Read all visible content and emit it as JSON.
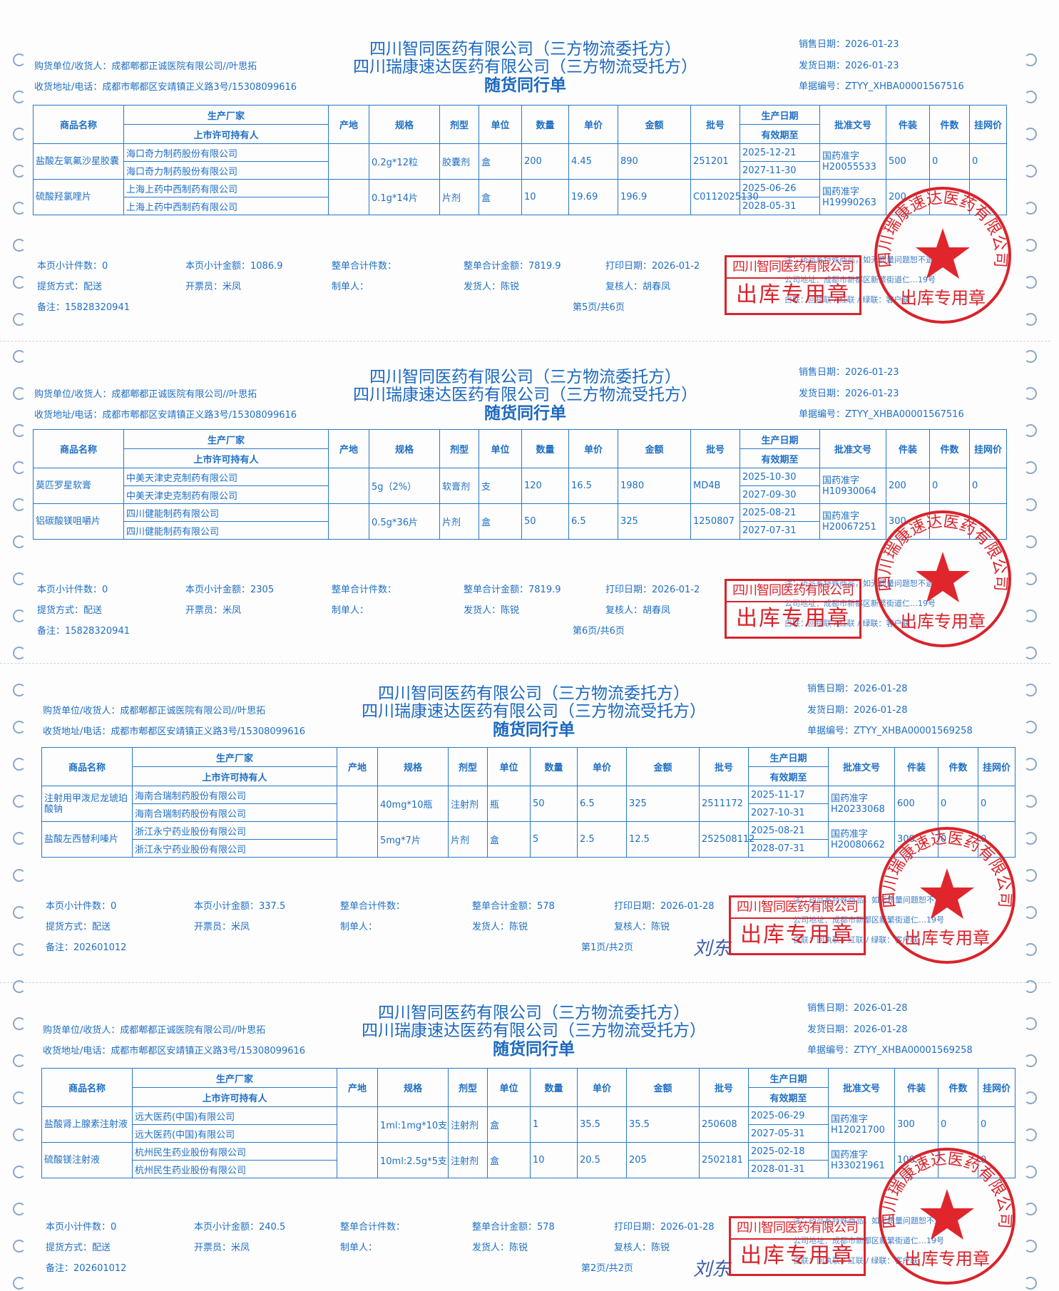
{
  "labels": {
    "buyer": "购货单位/收货人：",
    "address": "收货地址/电话：",
    "sale_date": "销售日期：",
    "ship_date": "发货日期：",
    "doc_no": "单据编号：",
    "page_count": "本页小计件数：",
    "page_amount": "本页小计金额：",
    "total_count": "整单合计件数：",
    "total_amount": "整单合计金额：",
    "print_date": "打印日期：",
    "delivery": "提货方式：",
    "invoicer": "开票员：",
    "maker": "制单人：",
    "shipper": "发货人：",
    "checker": "复核人：",
    "remark": "备注："
  },
  "title_lines": [
    "四川智同医药有限公司（三方物流委托方）",
    "四川瑞康速达医药有限公司（三方物流受托方）",
    "随货同行单"
  ],
  "table_headers": {
    "name": "商品名称",
    "manufacturer": "生产厂家",
    "mah": "上市许可持有人",
    "origin": "产地",
    "spec": "规格",
    "form": "剂型",
    "unit": "单位",
    "qty": "数量",
    "price": "单价",
    "amount": "金额",
    "batch": "批号",
    "prod_date": "生产日期",
    "expiry": "有效期至",
    "approval": "批准文号",
    "pack": "件装",
    "pieces": "件数",
    "net_price": "挂网价"
  },
  "notes": [
    "注：药品系特殊商品，如无质量问题恕不退货",
    "公司地址：成都市新都区新繁街道仁…19号",
    "白联：回执联 / 红联 / 绿联：客户联"
  ],
  "stamps": {
    "rect_company": "四川智同医药有限公司",
    "rect_text": "出库专用章",
    "circle_company": "四川瑞康速达医药有限公司",
    "circle_text": "出库专用章",
    "color": "#d9232b"
  },
  "colors": {
    "ink": "#1f6fc4",
    "grid": "#2a78c6",
    "stamp": "#d9232b"
  },
  "sections": [
    {
      "buyer": "成都郫都正诚医院有限公司//叶思拓",
      "address": "成都市郫都区安靖镇正义路3号/15308099616",
      "sale_date": "2026-01-23",
      "ship_date": "2026-01-23",
      "doc_no": "ZTYY_XHBA00001567516",
      "items": [
        {
          "name": "盐酸左氧氟沙星胶囊",
          "manufacturer": "海口奇力制药股份有限公司",
          "mah": "海口奇力制药股份有限公司",
          "origin": "",
          "spec": "0.2g*12粒",
          "form": "胶囊剂",
          "unit": "盒",
          "qty": "200",
          "price": "4.45",
          "amount": "890",
          "batch": "251201",
          "prod_date": "2025-12-21",
          "expiry": "2027-11-30",
          "approval_prefix": "国药准字",
          "approval_no": "H20055533",
          "pack": "500",
          "pieces": "0",
          "net_price": "0"
        },
        {
          "name": "硫酸羟氯喹片",
          "manufacturer": "上海上药中西制药有限公司",
          "mah": "上海上药中西制药有限公司",
          "origin": "",
          "spec": "0.1g*14片",
          "form": "片剂",
          "unit": "盒",
          "qty": "10",
          "price": "19.69",
          "amount": "196.9",
          "batch": "C0112025130",
          "prod_date": "2025-06-26",
          "expiry": "2028-05-31",
          "approval_prefix": "国药准字",
          "approval_no": "H19990263",
          "pack": "200",
          "pieces": "",
          "net_price": ""
        }
      ],
      "footer": {
        "page_count": "0",
        "page_amount": "1086.9",
        "total_count": "",
        "total_amount": "7819.9",
        "print_date": "2026-01-2",
        "delivery": "配送",
        "invoicer": "米凤",
        "maker": "",
        "shipper": "陈锐",
        "checker": "胡春凤",
        "remark": "15828320941",
        "page": "第5页/共6页"
      },
      "signature": ""
    },
    {
      "buyer": "成都郫都正诚医院有限公司//叶思拓",
      "address": "成都市郫都区安靖镇正义路3号/15308099616",
      "sale_date": "2026-01-23",
      "ship_date": "2026-01-23",
      "doc_no": "ZTYY_XHBA00001567516",
      "items": [
        {
          "name": "莫匹罗星软膏",
          "manufacturer": "中美天津史克制药有限公司",
          "mah": "中美天津史克制药有限公司",
          "origin": "",
          "spec": "5g（2%）",
          "form": "软膏剂",
          "unit": "支",
          "qty": "120",
          "price": "16.5",
          "amount": "1980",
          "batch": "MD4B",
          "prod_date": "2025-10-30",
          "expiry": "2027-09-30",
          "approval_prefix": "国药准字",
          "approval_no": "H10930064",
          "pack": "200",
          "pieces": "0",
          "net_price": "0"
        },
        {
          "name": "铝碳酸镁咀嚼片",
          "manufacturer": "四川健能制药有限公司",
          "mah": "四川健能制药有限公司",
          "origin": "",
          "spec": "0.5g*36片",
          "form": "片剂",
          "unit": "盒",
          "qty": "50",
          "price": "6.5",
          "amount": "325",
          "batch": "1250807",
          "prod_date": "2025-08-21",
          "expiry": "2027-07-31",
          "approval_prefix": "国药准字",
          "approval_no": "H20067251",
          "pack": "300",
          "pieces": "",
          "net_price": ""
        }
      ],
      "footer": {
        "page_count": "0",
        "page_amount": "2305",
        "total_count": "",
        "total_amount": "7819.9",
        "print_date": "2026-01-2",
        "delivery": "配送",
        "invoicer": "米凤",
        "maker": "",
        "shipper": "陈锐",
        "checker": "胡春凤",
        "remark": "15828320941",
        "page": "第6页/共6页"
      },
      "signature": ""
    },
    {
      "buyer": "成都郫都正诚医院有限公司//叶思拓",
      "address": "成都市郫都区安靖镇正义路3号/15308099616",
      "sale_date": "2026-01-28",
      "ship_date": "2026-01-28",
      "doc_no": "ZTYY_XHBA00001569258",
      "items": [
        {
          "name": "注射用甲泼尼龙琥珀酸钠",
          "manufacturer": "海南合瑞制药股份有限公司",
          "mah": "海南合瑞制药股份有限公司",
          "origin": "",
          "spec": "40mg*10瓶",
          "form": "注射剂",
          "unit": "瓶",
          "qty": "50",
          "price": "6.5",
          "amount": "325",
          "batch": "2511172",
          "prod_date": "2025-11-17",
          "expiry": "2027-10-31",
          "approval_prefix": "国药准字",
          "approval_no": "H20233068",
          "pack": "600",
          "pieces": "0",
          "net_price": "0"
        },
        {
          "name": "盐酸左西替利嗪片",
          "manufacturer": "浙江永宁药业股份有限公司",
          "mah": "浙江永宁药业股份有限公司",
          "origin": "",
          "spec": "5mg*7片",
          "form": "片剂",
          "unit": "盒",
          "qty": "5",
          "price": "2.5",
          "amount": "12.5",
          "batch": "252508112",
          "prod_date": "2025-08-21",
          "expiry": "2028-07-31",
          "approval_prefix": "国药准字",
          "approval_no": "H20080662",
          "pack": "300",
          "pieces": "0",
          "net_price": "0"
        }
      ],
      "footer": {
        "page_count": "0",
        "page_amount": "337.5",
        "total_count": "",
        "total_amount": "578",
        "print_date": "2026-01-28",
        "delivery": "配送",
        "invoicer": "米凤",
        "maker": "",
        "shipper": "陈锐",
        "checker": "陈锐",
        "remark": "202601012",
        "page": "第1页/共2页"
      },
      "signature": "刘东"
    },
    {
      "buyer": "成都郫都正诚医院有限公司//叶思拓",
      "address": "成都市郫都区安靖镇正义路3号/15308099616",
      "sale_date": "2026-01-28",
      "ship_date": "2026-01-28",
      "doc_no": "ZTYY_XHBA00001569258",
      "items": [
        {
          "name": "盐酸肾上腺素注射液",
          "manufacturer": "远大医药(中国)有限公司",
          "mah": "远大医药(中国)有限公司",
          "origin": "",
          "spec": "1ml:1mg*10支",
          "form": "注射剂",
          "unit": "盒",
          "qty": "1",
          "price": "35.5",
          "amount": "35.5",
          "batch": "250608",
          "prod_date": "2025-06-29",
          "expiry": "2027-05-31",
          "approval_prefix": "国药准字",
          "approval_no": "H12021700",
          "pack": "300",
          "pieces": "0",
          "net_price": "0"
        },
        {
          "name": "硫酸镁注射液",
          "manufacturer": "杭州民生药业股份有限公司",
          "mah": "杭州民生药业股份有限公司",
          "origin": "",
          "spec": "10ml:2.5g*5支",
          "form": "注射剂",
          "unit": "盒",
          "qty": "10",
          "price": "20.5",
          "amount": "205",
          "batch": "2502181",
          "prod_date": "2025-02-18",
          "expiry": "2028-01-31",
          "approval_prefix": "国药准字",
          "approval_no": "H33021961",
          "pack": "100",
          "pieces": "",
          "net_price": "0"
        }
      ],
      "footer": {
        "page_count": "0",
        "page_amount": "240.5",
        "total_count": "",
        "total_amount": "578",
        "print_date": "2026-01-28",
        "delivery": "配送",
        "invoicer": "米凤",
        "maker": "",
        "shipper": "陈锐",
        "checker": "陈锐",
        "remark": "202601012",
        "page": "第2页/共2页"
      },
      "signature": "刘东"
    }
  ]
}
